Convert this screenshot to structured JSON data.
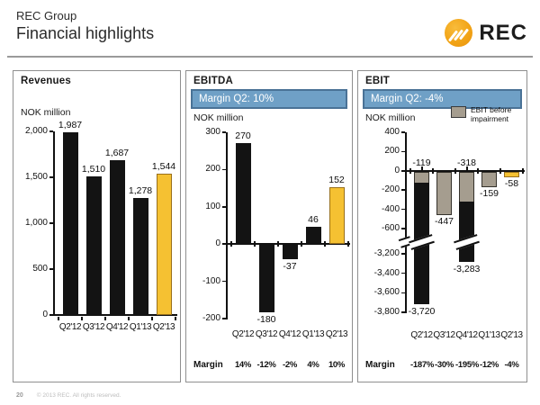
{
  "header": {
    "pretitle": "REC Group",
    "title": "Financial highlights",
    "logo_text": "REC"
  },
  "footer": {
    "page_number": "20",
    "copyright": "© 2013 REC. All rights reserved."
  },
  "colors": {
    "bar_black": "#131313",
    "bar_yellow": "#F5C132",
    "bar_gray": "#A59D8F",
    "banner_bg": "#6FA0C6",
    "banner_border": "#4A7296",
    "logo_orange": "#F2A416"
  },
  "charts": [
    {
      "name": "revenues",
      "title": "Revenues",
      "unit_label": "NOK million",
      "chart_data": {
        "type": "bar",
        "categories": [
          "Q2'12",
          "Q3'12",
          "Q4'12",
          "Q1'13",
          "Q2'13"
        ],
        "values": [
          1987,
          1510,
          1687,
          1278,
          1544
        ],
        "value_labels": [
          "1,987",
          "1,510",
          "1,687",
          "1,278",
          "1,544"
        ],
        "highlight_last": true,
        "ylim": [
          0,
          2000
        ],
        "axis_ticks": [
          2000,
          1500,
          1000,
          500,
          0
        ],
        "axis_tick_labels": [
          "2,000",
          "1,500",
          "1,000",
          "500",
          "0"
        ]
      }
    },
    {
      "name": "ebitda",
      "title": "EBITDA",
      "banner": "Margin Q2: 10%",
      "unit_label": "NOK million",
      "chart_data": {
        "type": "bar",
        "categories": [
          "Q2'12",
          "Q3'12",
          "Q4'12",
          "Q1'13",
          "Q2'13"
        ],
        "values": [
          270,
          -180,
          -37,
          46,
          152
        ],
        "value_labels": [
          "270",
          "-180",
          "-37",
          "46",
          "152"
        ],
        "highlight_last": true,
        "ylim": [
          -200,
          300
        ],
        "axis_ticks": [
          300,
          200,
          100,
          0,
          -100,
          -200
        ],
        "axis_tick_labels": [
          "300",
          "200",
          "100",
          "0",
          "-100",
          "-200"
        ]
      },
      "margin_row": {
        "label": "Margin",
        "values": [
          "14%",
          "-12%",
          "-2%",
          "4%",
          "10%"
        ]
      }
    },
    {
      "name": "ebit",
      "title": "EBIT",
      "banner": "Margin Q2: -4%",
      "unit_label": "NOK million",
      "legend": {
        "label": "EBIT before impairment",
        "swatch_color": "#A59D8F"
      },
      "chart_data": {
        "type": "bar-broken-axis",
        "categories": [
          "Q2'12",
          "Q3'12",
          "Q4'12",
          "Q1'13",
          "Q2'13"
        ],
        "series": [
          {
            "name": "EBIT",
            "values": [
              -3720,
              -447,
              -3283,
              -159,
              -58
            ]
          },
          {
            "name": "EBIT before impairment",
            "values": [
              -119,
              -447,
              -318,
              -159,
              -58
            ]
          }
        ],
        "value_labels_above": [
          "-119",
          null,
          "-318",
          null,
          null
        ],
        "value_labels_below": [
          "-3,720",
          "-447",
          "-3,283",
          "-159",
          "-58"
        ],
        "highlight_last": true,
        "axis_break_between": [
          -600,
          -3200
        ],
        "axis_ticks_top": [
          400,
          200,
          0,
          -200,
          -400,
          -600
        ],
        "axis_tick_labels_top": [
          "400",
          "200",
          "0",
          "-200",
          "-400",
          "-600"
        ],
        "axis_ticks_bottom": [
          -3200,
          -3400,
          -3600,
          -3800
        ],
        "axis_tick_labels_bottom": [
          "-3,200",
          "-3,400",
          "-3,600",
          "-3,800"
        ]
      },
      "margin_row": {
        "label": "Margin",
        "values": [
          "-187%",
          "-30%",
          "-195%",
          "-12%",
          "-4%"
        ]
      }
    }
  ]
}
